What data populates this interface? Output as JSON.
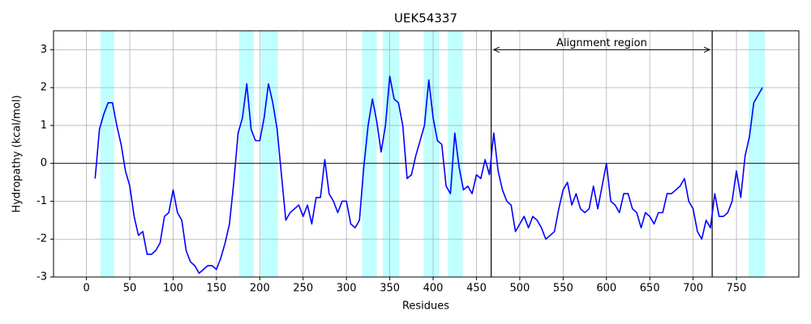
{
  "chart_data": {
    "type": "line",
    "title": "UEK54337",
    "x_label": "Residues",
    "y_label": "Hydropathy (kcal/mol)",
    "color": "#0000ff",
    "region_color": "#c0ffff",
    "grid": true,
    "xlim": [
      -38,
      822
    ],
    "ylim": [
      -3,
      3.5
    ],
    "xticks": [
      0,
      50,
      100,
      150,
      200,
      250,
      300,
      350,
      400,
      450,
      500,
      550,
      600,
      650,
      700,
      750
    ],
    "yticks": [
      -3,
      -2,
      -1,
      0,
      1,
      2,
      3
    ],
    "regions": [
      [
        16,
        32
      ],
      [
        176,
        193
      ],
      [
        201,
        221
      ],
      [
        318,
        335
      ],
      [
        342,
        361
      ],
      [
        389,
        407
      ],
      [
        417,
        434
      ],
      [
        764,
        783
      ]
    ],
    "alignment_region": [
      467,
      722
    ],
    "annotation": {
      "text": "Alignment region",
      "y": 3
    },
    "x": [
      10,
      15,
      20,
      25,
      30,
      35,
      40,
      45,
      50,
      55,
      60,
      65,
      70,
      75,
      80,
      85,
      90,
      95,
      100,
      105,
      110,
      115,
      120,
      125,
      130,
      135,
      140,
      145,
      150,
      155,
      160,
      165,
      170,
      175,
      180,
      185,
      190,
      195,
      200,
      205,
      210,
      215,
      220,
      225,
      230,
      235,
      240,
      245,
      250,
      255,
      260,
      265,
      270,
      275,
      280,
      285,
      290,
      295,
      300,
      305,
      310,
      315,
      320,
      325,
      330,
      335,
      340,
      345,
      350,
      355,
      360,
      365,
      370,
      375,
      380,
      385,
      390,
      395,
      400,
      405,
      410,
      415,
      420,
      425,
      430,
      435,
      440,
      445,
      450,
      455,
      460,
      465,
      470,
      475,
      480,
      485,
      490,
      495,
      500,
      505,
      510,
      515,
      520,
      525,
      530,
      535,
      540,
      545,
      550,
      555,
      560,
      565,
      570,
      575,
      580,
      585,
      590,
      595,
      600,
      605,
      610,
      615,
      620,
      625,
      630,
      635,
      640,
      645,
      650,
      655,
      660,
      665,
      670,
      675,
      680,
      685,
      690,
      695,
      700,
      705,
      710,
      715,
      720,
      725,
      730,
      735,
      740,
      745,
      750,
      755,
      760,
      765,
      770,
      775,
      780
    ],
    "values": [
      -0.4,
      0.9,
      1.3,
      1.6,
      1.6,
      1.0,
      0.5,
      -0.2,
      -0.6,
      -1.4,
      -1.9,
      -1.8,
      -2.4,
      -2.4,
      -2.3,
      -2.1,
      -1.4,
      -1.3,
      -0.7,
      -1.3,
      -1.5,
      -2.3,
      -2.6,
      -2.7,
      -2.9,
      -2.8,
      -2.7,
      -2.7,
      -2.8,
      -2.5,
      -2.1,
      -1.6,
      -0.5,
      0.8,
      1.2,
      2.1,
      0.9,
      0.6,
      0.6,
      1.2,
      2.1,
      1.6,
      0.9,
      -0.3,
      -1.5,
      -1.3,
      -1.2,
      -1.1,
      -1.4,
      -1.1,
      -1.6,
      -0.9,
      -0.9,
      0.1,
      -0.8,
      -1.0,
      -1.3,
      -1.0,
      -1.0,
      -1.6,
      -1.7,
      -1.5,
      -0.1,
      1.0,
      1.7,
      1.1,
      0.3,
      1.0,
      2.3,
      1.7,
      1.6,
      1.0,
      -0.4,
      -0.3,
      0.2,
      0.6,
      1.0,
      2.2,
      1.2,
      0.6,
      0.5,
      -0.6,
      -0.8,
      0.8,
      -0.1,
      -0.7,
      -0.6,
      -0.8,
      -0.3,
      -0.4,
      0.1,
      -0.3,
      0.8,
      -0.2,
      -0.7,
      -1.0,
      -1.1,
      -1.8,
      -1.6,
      -1.4,
      -1.7,
      -1.4,
      -1.5,
      -1.7,
      -2.0,
      -1.9,
      -1.8,
      -1.2,
      -0.7,
      -0.5,
      -1.1,
      -0.8,
      -1.2,
      -1.3,
      -1.2,
      -0.6,
      -1.2,
      -0.6,
      0.0,
      -1.0,
      -1.1,
      -1.3,
      -0.8,
      -0.8,
      -1.2,
      -1.3,
      -1.7,
      -1.3,
      -1.4,
      -1.6,
      -1.3,
      -1.3,
      -0.8,
      -0.8,
      -0.7,
      -0.6,
      -0.4,
      -1.0,
      -1.2,
      -1.8,
      -2.0,
      -1.5,
      -1.7,
      -0.8,
      -1.4,
      -1.4,
      -1.3,
      -1.0,
      -0.2,
      -0.9,
      0.2,
      0.7,
      1.6,
      1.8,
      2.0
    ]
  }
}
